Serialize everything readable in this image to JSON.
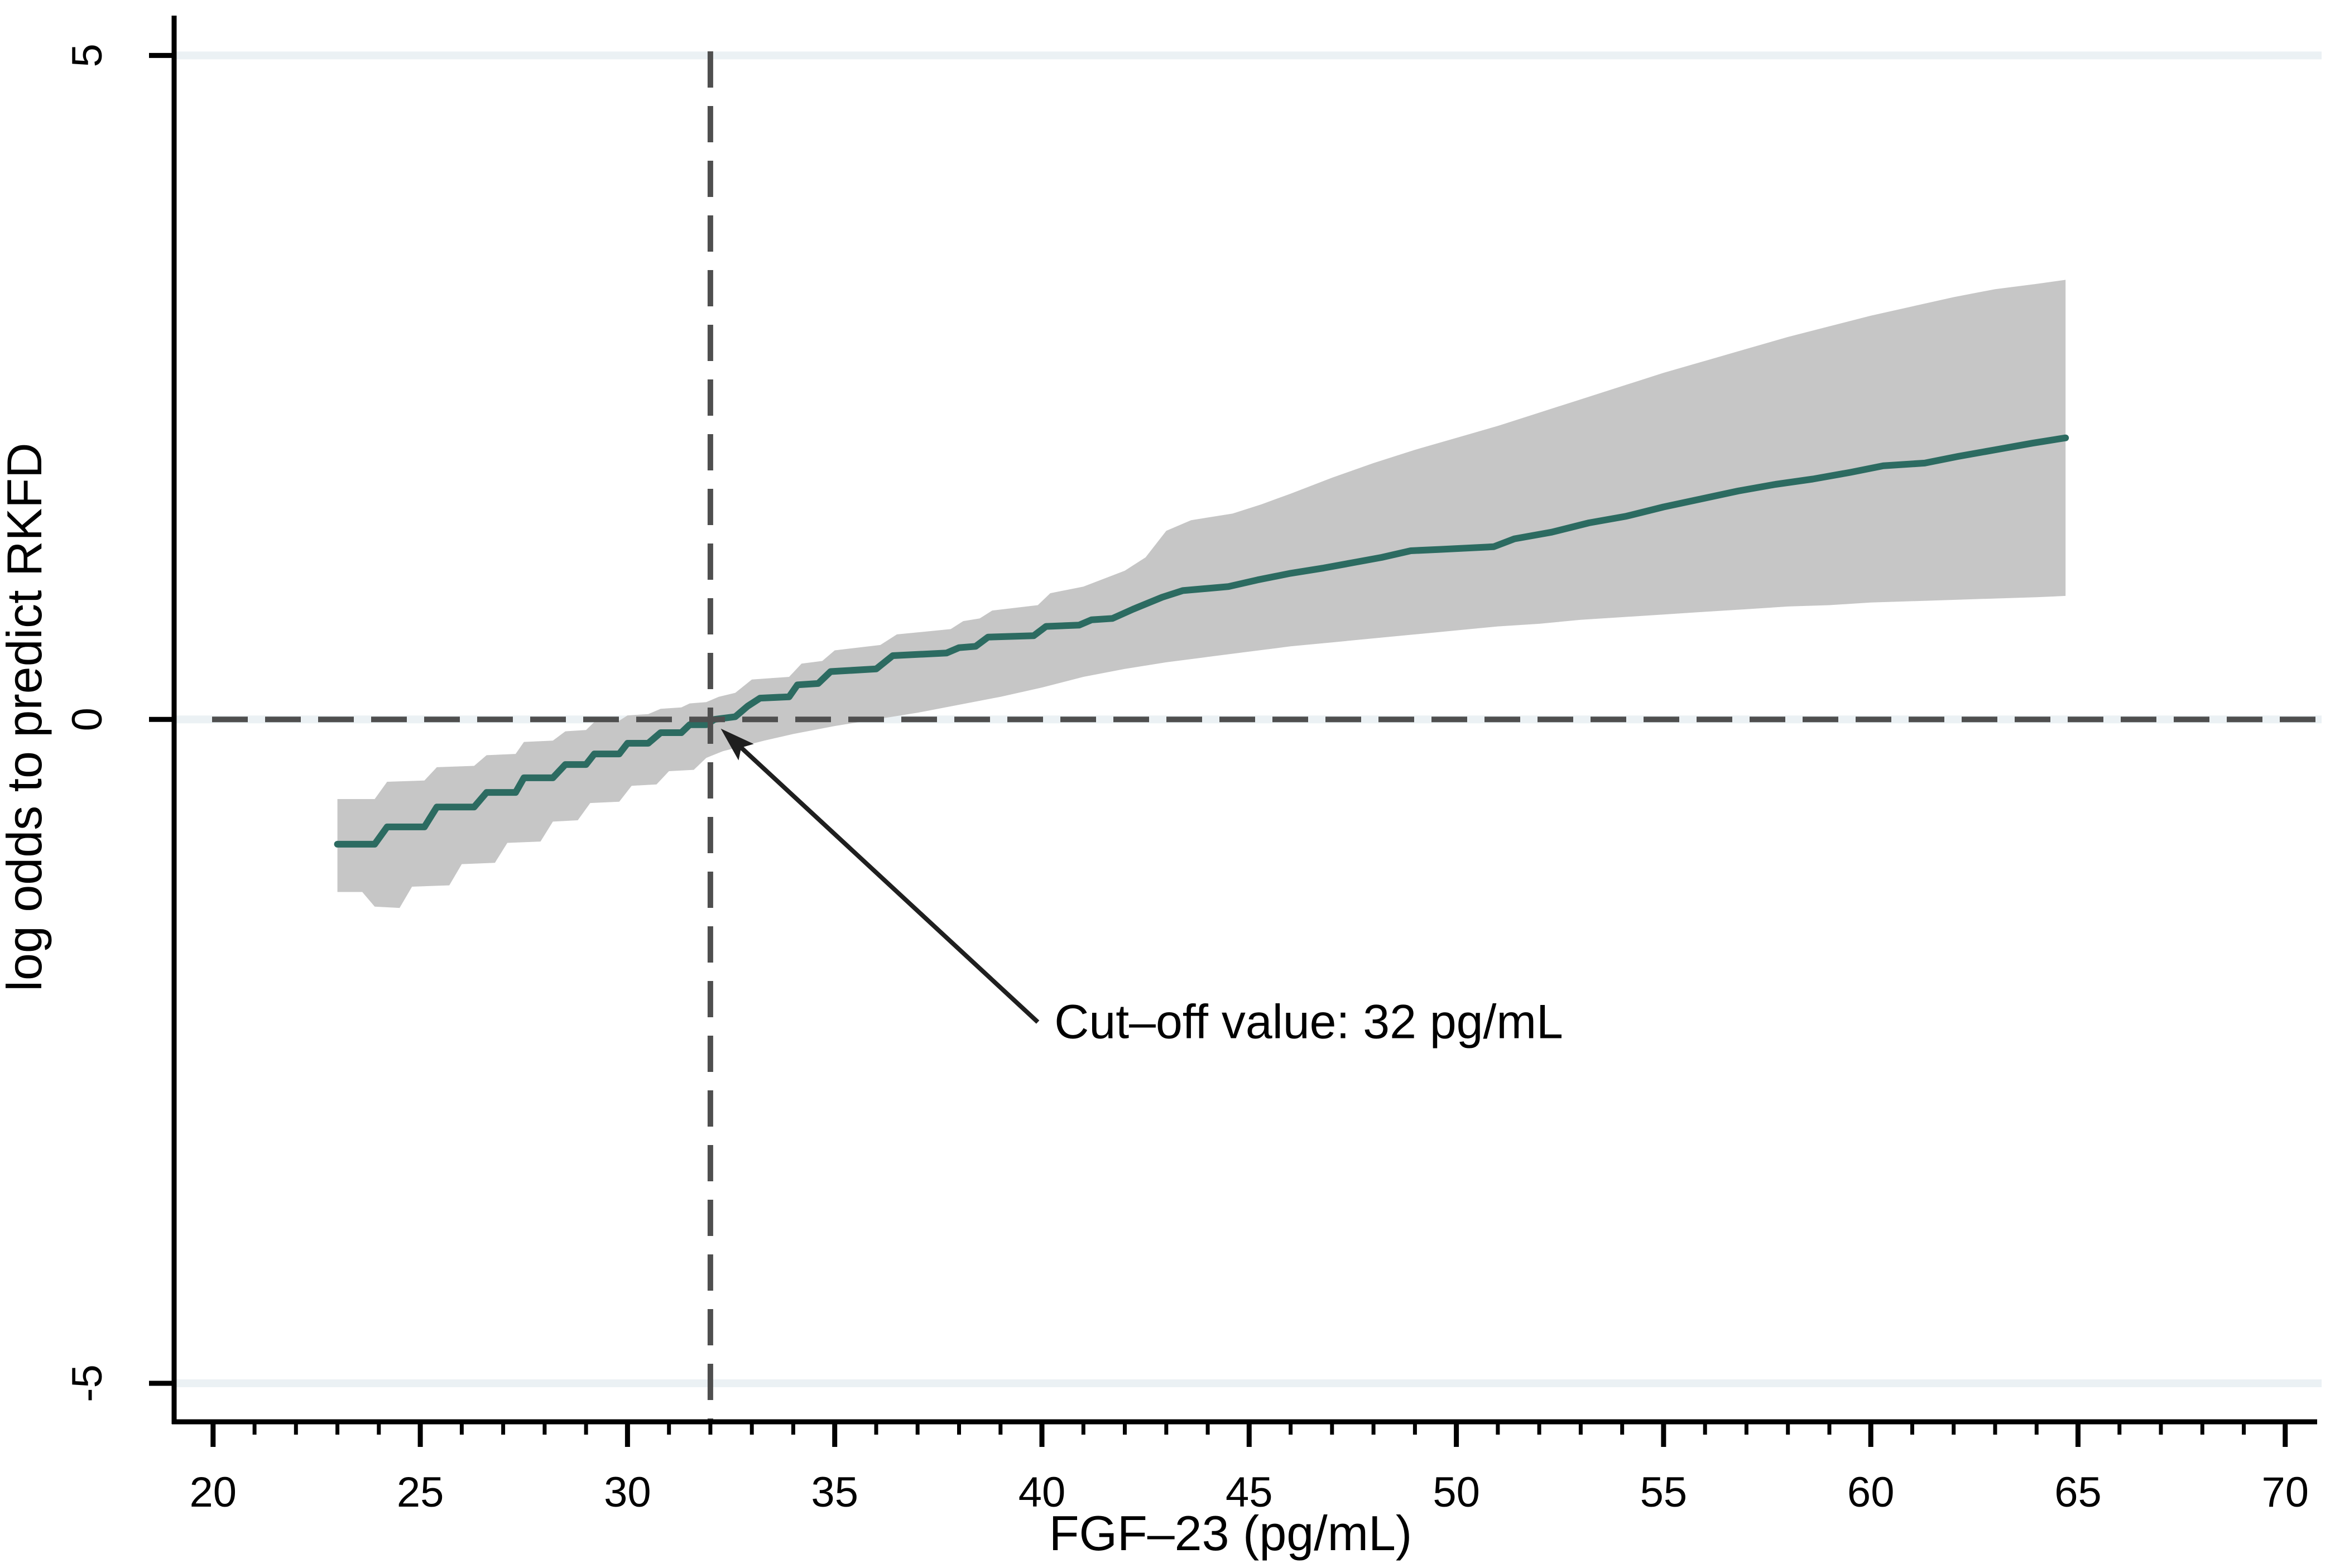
{
  "chart_data": {
    "type": "line",
    "title": "",
    "xlabel": "FGF–23 (pg/mL)",
    "ylabel": "log odds to predict RKFD",
    "xlim": [
      19.06,
      70.77
    ],
    "ylim": [
      -5.29,
      5.3
    ],
    "x_major_ticks": [
      20,
      25,
      30,
      35,
      40,
      45,
      50,
      55,
      60,
      65,
      70
    ],
    "x_minor_ticks_from": 21,
    "x_minor_ticks_to": 69,
    "x_minor_tick_step": 1,
    "y_ticks": [
      5,
      0,
      -5
    ],
    "grid_y": [
      5,
      0,
      -5
    ],
    "grid_on": true,
    "legend": "none",
    "reference_lines": {
      "horizontal_y": 0,
      "vertical_x": 32,
      "style": "dashed"
    },
    "annotation": {
      "text": "Cut–off value: 32 pg/mL",
      "text_pos": [
        40.3,
        -2.4
      ],
      "arrow_tail": [
        39.9,
        -2.28
      ],
      "arrow_tip": [
        32.25,
        -0.07
      ]
    },
    "colors": {
      "line": "#2c6b61",
      "band": "#c6c6c6",
      "grid": "#ebf1f4",
      "dash": "#4f4f4f",
      "axis": "#000000",
      "arrow": "#1f1f1f",
      "background": "#ffffff"
    },
    "series": [
      {
        "name": "log odds point estimate",
        "points": [
          [
            23.0,
            -0.94
          ],
          [
            23.9,
            -0.94
          ],
          [
            24.2,
            -0.81
          ],
          [
            25.1,
            -0.81
          ],
          [
            25.4,
            -0.66
          ],
          [
            26.3,
            -0.66
          ],
          [
            26.6,
            -0.55
          ],
          [
            27.3,
            -0.55
          ],
          [
            27.5,
            -0.44
          ],
          [
            28.2,
            -0.44
          ],
          [
            28.5,
            -0.34
          ],
          [
            29.0,
            -0.34
          ],
          [
            29.2,
            -0.26
          ],
          [
            29.8,
            -0.26
          ],
          [
            30.0,
            -0.18
          ],
          [
            30.5,
            -0.18
          ],
          [
            30.8,
            -0.1
          ],
          [
            31.3,
            -0.1
          ],
          [
            31.5,
            -0.04
          ],
          [
            31.9,
            -0.04
          ],
          [
            32.1,
            0.0
          ],
          [
            32.6,
            0.02
          ],
          [
            32.9,
            0.1
          ],
          [
            33.2,
            0.16
          ],
          [
            33.9,
            0.17
          ],
          [
            34.1,
            0.26
          ],
          [
            34.6,
            0.27
          ],
          [
            34.9,
            0.36
          ],
          [
            36.0,
            0.38
          ],
          [
            36.4,
            0.48
          ],
          [
            37.7,
            0.5
          ],
          [
            38.0,
            0.54
          ],
          [
            38.4,
            0.55
          ],
          [
            38.7,
            0.62
          ],
          [
            39.8,
            0.63
          ],
          [
            40.1,
            0.7
          ],
          [
            40.9,
            0.71
          ],
          [
            41.2,
            0.75
          ],
          [
            41.7,
            0.76
          ],
          [
            42.2,
            0.83
          ],
          [
            42.9,
            0.92
          ],
          [
            43.4,
            0.97
          ],
          [
            44.5,
            1.0
          ],
          [
            45.2,
            1.05
          ],
          [
            46.0,
            1.1
          ],
          [
            46.8,
            1.14
          ],
          [
            47.5,
            1.18
          ],
          [
            48.2,
            1.22
          ],
          [
            48.9,
            1.27
          ],
          [
            49.6,
            1.28
          ],
          [
            50.9,
            1.3
          ],
          [
            51.4,
            1.36
          ],
          [
            52.3,
            1.41
          ],
          [
            53.2,
            1.48
          ],
          [
            54.1,
            1.53
          ],
          [
            55.0,
            1.6
          ],
          [
            55.9,
            1.66
          ],
          [
            56.8,
            1.72
          ],
          [
            57.7,
            1.77
          ],
          [
            58.6,
            1.81
          ],
          [
            59.5,
            1.86
          ],
          [
            60.3,
            1.91
          ],
          [
            61.3,
            1.93
          ],
          [
            62.1,
            1.98
          ],
          [
            63.0,
            2.03
          ],
          [
            63.9,
            2.08
          ],
          [
            64.7,
            2.12
          ]
        ]
      },
      {
        "name": "95% CI upper bound",
        "points": [
          [
            23.0,
            -0.6
          ],
          [
            23.9,
            -0.6
          ],
          [
            24.2,
            -0.47
          ],
          [
            25.1,
            -0.46
          ],
          [
            25.4,
            -0.36
          ],
          [
            26.3,
            -0.35
          ],
          [
            26.6,
            -0.27
          ],
          [
            27.3,
            -0.26
          ],
          [
            27.5,
            -0.17
          ],
          [
            28.2,
            -0.16
          ],
          [
            28.5,
            -0.09
          ],
          [
            29.0,
            -0.08
          ],
          [
            29.2,
            -0.02
          ],
          [
            29.8,
            -0.01
          ],
          [
            30.0,
            0.03
          ],
          [
            30.5,
            0.04
          ],
          [
            30.8,
            0.08
          ],
          [
            31.3,
            0.09
          ],
          [
            31.5,
            0.12
          ],
          [
            31.9,
            0.13
          ],
          [
            32.2,
            0.17
          ],
          [
            32.6,
            0.2
          ],
          [
            33.0,
            0.3
          ],
          [
            33.9,
            0.32
          ],
          [
            34.2,
            0.42
          ],
          [
            34.7,
            0.44
          ],
          [
            35.0,
            0.52
          ],
          [
            36.1,
            0.56
          ],
          [
            36.5,
            0.64
          ],
          [
            37.8,
            0.68
          ],
          [
            38.1,
            0.74
          ],
          [
            38.5,
            0.76
          ],
          [
            38.8,
            0.82
          ],
          [
            39.9,
            0.86
          ],
          [
            40.2,
            0.95
          ],
          [
            41.0,
            1.0
          ],
          [
            41.5,
            1.06
          ],
          [
            42.0,
            1.12
          ],
          [
            42.5,
            1.22
          ],
          [
            43.0,
            1.42
          ],
          [
            43.6,
            1.5
          ],
          [
            44.6,
            1.55
          ],
          [
            45.3,
            1.62
          ],
          [
            46.0,
            1.7
          ],
          [
            47.0,
            1.82
          ],
          [
            48.0,
            1.93
          ],
          [
            49.0,
            2.03
          ],
          [
            50.0,
            2.12
          ],
          [
            51.0,
            2.21
          ],
          [
            52.0,
            2.31
          ],
          [
            53.0,
            2.41
          ],
          [
            54.0,
            2.51
          ],
          [
            55.0,
            2.61
          ],
          [
            56.0,
            2.7
          ],
          [
            57.0,
            2.79
          ],
          [
            58.0,
            2.88
          ],
          [
            59.0,
            2.96
          ],
          [
            60.0,
            3.04
          ],
          [
            61.0,
            3.11
          ],
          [
            62.0,
            3.18
          ],
          [
            63.0,
            3.24
          ],
          [
            64.0,
            3.28
          ],
          [
            64.7,
            3.31
          ]
        ]
      },
      {
        "name": "95% CI lower bound",
        "points": [
          [
            23.0,
            -1.3
          ],
          [
            23.6,
            -1.3
          ],
          [
            23.9,
            -1.41
          ],
          [
            24.5,
            -1.42
          ],
          [
            24.8,
            -1.26
          ],
          [
            25.7,
            -1.25
          ],
          [
            26.0,
            -1.09
          ],
          [
            26.8,
            -1.08
          ],
          [
            27.1,
            -0.93
          ],
          [
            27.9,
            -0.92
          ],
          [
            28.2,
            -0.77
          ],
          [
            28.8,
            -0.76
          ],
          [
            29.1,
            -0.63
          ],
          [
            29.8,
            -0.62
          ],
          [
            30.1,
            -0.5
          ],
          [
            30.7,
            -0.49
          ],
          [
            31.0,
            -0.39
          ],
          [
            31.6,
            -0.38
          ],
          [
            31.9,
            -0.29
          ],
          [
            32.3,
            -0.24
          ],
          [
            32.8,
            -0.2
          ],
          [
            33.3,
            -0.16
          ],
          [
            34.0,
            -0.11
          ],
          [
            35.0,
            -0.05
          ],
          [
            36.2,
            0.01
          ],
          [
            37.0,
            0.05
          ],
          [
            38.0,
            0.11
          ],
          [
            39.0,
            0.17
          ],
          [
            40.0,
            0.24
          ],
          [
            41.0,
            0.32
          ],
          [
            42.0,
            0.38
          ],
          [
            43.0,
            0.43
          ],
          [
            44.0,
            0.47
          ],
          [
            45.0,
            0.51
          ],
          [
            46.0,
            0.55
          ],
          [
            47.0,
            0.58
          ],
          [
            48.0,
            0.61
          ],
          [
            49.0,
            0.64
          ],
          [
            50.0,
            0.67
          ],
          [
            51.0,
            0.7
          ],
          [
            52.0,
            0.72
          ],
          [
            53.0,
            0.75
          ],
          [
            54.0,
            0.77
          ],
          [
            55.0,
            0.79
          ],
          [
            56.0,
            0.81
          ],
          [
            57.0,
            0.83
          ],
          [
            58.0,
            0.85
          ],
          [
            59.0,
            0.86
          ],
          [
            60.0,
            0.88
          ],
          [
            61.0,
            0.89
          ],
          [
            62.0,
            0.9
          ],
          [
            63.0,
            0.91
          ],
          [
            64.0,
            0.92
          ],
          [
            64.7,
            0.93
          ]
        ]
      }
    ]
  }
}
